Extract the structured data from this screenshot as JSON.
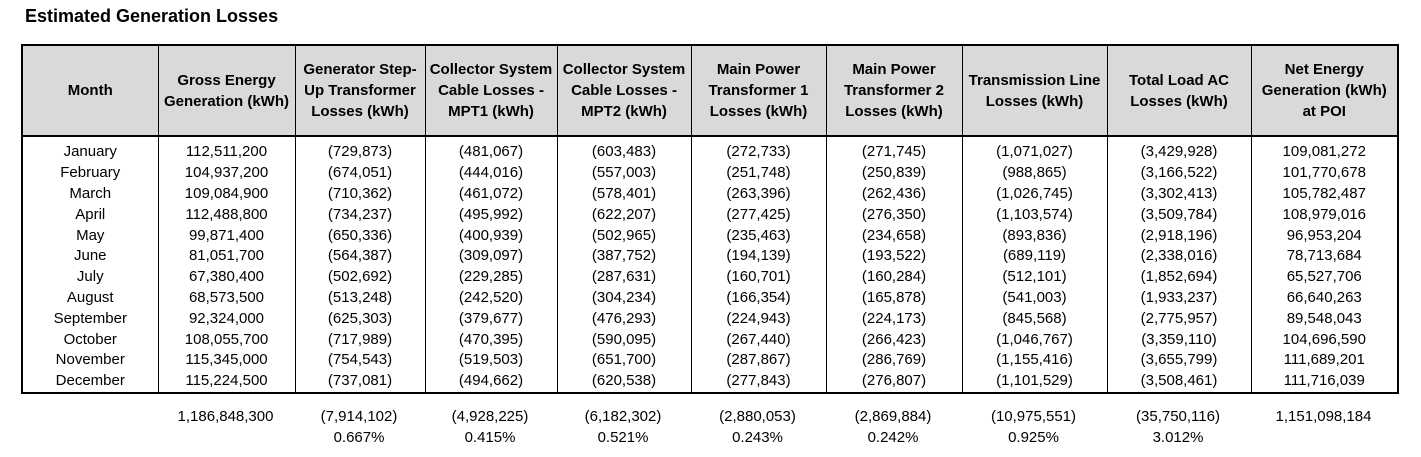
{
  "title": "Estimated Generation Losses",
  "columns": [
    "Month",
    "Gross Energy Generation (kWh)",
    "Generator Step-Up Transformer Losses (kWh)",
    "Collector System Cable Losses - MPT1 (kWh)",
    "Collector System Cable Losses - MPT2 (kWh)",
    "Main Power Transformer 1 Losses (kWh)",
    "Main Power Transformer 2 Losses (kWh)",
    "Transmission Line Losses (kWh)",
    "Total Load AC Losses (kWh)",
    "Net Energy Generation (kWh) at POI"
  ],
  "rows": [
    [
      "January",
      "112,511,200",
      "(729,873)",
      "(481,067)",
      "(603,483)",
      "(272,733)",
      "(271,745)",
      "(1,071,027)",
      "(3,429,928)",
      "109,081,272"
    ],
    [
      "February",
      "104,937,200",
      "(674,051)",
      "(444,016)",
      "(557,003)",
      "(251,748)",
      "(250,839)",
      "(988,865)",
      "(3,166,522)",
      "101,770,678"
    ],
    [
      "March",
      "109,084,900",
      "(710,362)",
      "(461,072)",
      "(578,401)",
      "(263,396)",
      "(262,436)",
      "(1,026,745)",
      "(3,302,413)",
      "105,782,487"
    ],
    [
      "April",
      "112,488,800",
      "(734,237)",
      "(495,992)",
      "(622,207)",
      "(277,425)",
      "(276,350)",
      "(1,103,574)",
      "(3,509,784)",
      "108,979,016"
    ],
    [
      "May",
      "99,871,400",
      "(650,336)",
      "(400,939)",
      "(502,965)",
      "(235,463)",
      "(234,658)",
      "(893,836)",
      "(2,918,196)",
      "96,953,204"
    ],
    [
      "June",
      "81,051,700",
      "(564,387)",
      "(309,097)",
      "(387,752)",
      "(194,139)",
      "(193,522)",
      "(689,119)",
      "(2,338,016)",
      "78,713,684"
    ],
    [
      "July",
      "67,380,400",
      "(502,692)",
      "(229,285)",
      "(287,631)",
      "(160,701)",
      "(160,284)",
      "(512,101)",
      "(1,852,694)",
      "65,527,706"
    ],
    [
      "August",
      "68,573,500",
      "(513,248)",
      "(242,520)",
      "(304,234)",
      "(166,354)",
      "(165,878)",
      "(541,003)",
      "(1,933,237)",
      "66,640,263"
    ],
    [
      "September",
      "92,324,000",
      "(625,303)",
      "(379,677)",
      "(476,293)",
      "(224,943)",
      "(224,173)",
      "(845,568)",
      "(2,775,957)",
      "89,548,043"
    ],
    [
      "October",
      "108,055,700",
      "(717,989)",
      "(470,395)",
      "(590,095)",
      "(267,440)",
      "(266,423)",
      "(1,046,767)",
      "(3,359,110)",
      "104,696,590"
    ],
    [
      "November",
      "115,345,000",
      "(754,543)",
      "(519,503)",
      "(651,700)",
      "(287,867)",
      "(286,769)",
      "(1,155,416)",
      "(3,655,799)",
      "111,689,201"
    ],
    [
      "December",
      "115,224,500",
      "(737,081)",
      "(494,662)",
      "(620,538)",
      "(277,843)",
      "(276,807)",
      "(1,101,529)",
      "(3,508,461)",
      "111,716,039"
    ]
  ],
  "totals": [
    "",
    "1,186,848,300",
    "(7,914,102)",
    "(4,928,225)",
    "(6,182,302)",
    "(2,880,053)",
    "(2,869,884)",
    "(10,975,551)",
    "(35,750,116)",
    "1,151,098,184"
  ],
  "percentages": [
    "",
    "",
    "0.667%",
    "0.415%",
    "0.521%",
    "0.243%",
    "0.242%",
    "0.925%",
    "3.012%",
    ""
  ]
}
